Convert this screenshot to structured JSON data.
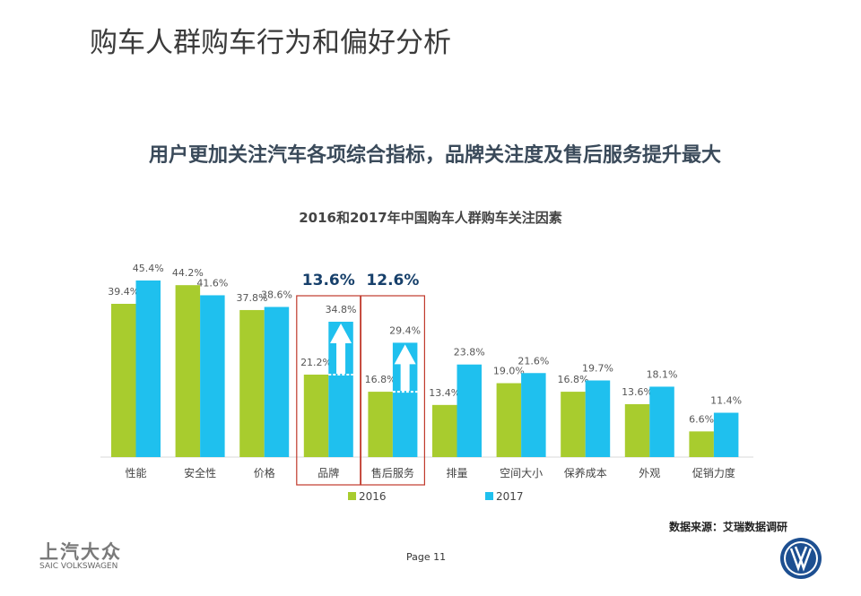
{
  "header": {
    "title": "购车人群购车行为和偏好分析",
    "subtitle": "用户更加关注汽车各项综合指标，品牌关注度及售后服务提升最大"
  },
  "chart_data": {
    "type": "bar",
    "title": "2016和2017年中国购车人群购车关注因素",
    "categories": [
      "性能",
      "安全性",
      "价格",
      "品牌",
      "售后服务",
      "排量",
      "空间大小",
      "保养成本",
      "外观",
      "促销力度"
    ],
    "series": [
      {
        "name": "2016",
        "color": "#a8cc2e",
        "values": [
          39.4,
          44.2,
          37.8,
          21.2,
          16.8,
          13.4,
          19.0,
          16.8,
          13.6,
          6.6
        ]
      },
      {
        "name": "2017",
        "color": "#1fc0ee",
        "values": [
          45.4,
          41.6,
          38.6,
          34.8,
          29.4,
          23.8,
          21.6,
          19.7,
          18.1,
          11.4
        ]
      }
    ],
    "unit": "%",
    "legend": "bottom",
    "grid": false,
    "highlights": [
      {
        "category": "品牌",
        "increase": "13.6%"
      },
      {
        "category": "售后服务",
        "increase": "12.6%"
      }
    ],
    "highlight_color": "#c0392b",
    "increase_color": "#17406b"
  },
  "footer": {
    "source": "数据来源：艾瑞数据调研",
    "page": "Page 11",
    "logo_cn": "上汽大众",
    "logo_en": "SAIC VOLKSWAGEN"
  }
}
